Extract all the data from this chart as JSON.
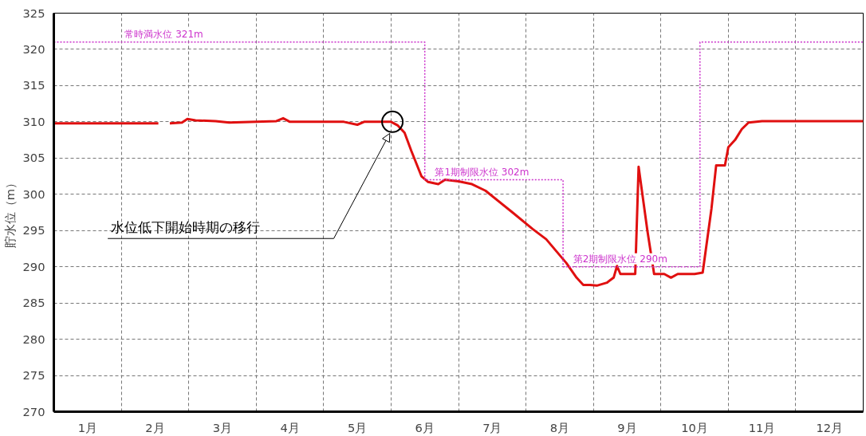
{
  "chart_data": {
    "type": "line",
    "ylabel": "貯水位（m）",
    "xlim": [
      0,
      12
    ],
    "ylim": [
      270,
      325
    ],
    "xticks": [
      {
        "value": 0,
        "label": null
      },
      {
        "value": 0.5,
        "label": "1月"
      },
      {
        "value": 1,
        "label": null
      },
      {
        "value": 1.5,
        "label": "2月"
      },
      {
        "value": 2,
        "label": null
      },
      {
        "value": 2.5,
        "label": "3月"
      },
      {
        "value": 3,
        "label": null
      },
      {
        "value": 3.5,
        "label": "4月"
      },
      {
        "value": 4,
        "label": null
      },
      {
        "value": 4.5,
        "label": "5月"
      },
      {
        "value": 5,
        "label": null
      },
      {
        "value": 5.5,
        "label": "6月"
      },
      {
        "value": 6,
        "label": null
      },
      {
        "value": 6.5,
        "label": "7月"
      },
      {
        "value": 7,
        "label": null
      },
      {
        "value": 7.5,
        "label": "8月"
      },
      {
        "value": 8,
        "label": null
      },
      {
        "value": 8.5,
        "label": "9月"
      },
      {
        "value": 9,
        "label": null
      },
      {
        "value": 9.5,
        "label": "10月"
      },
      {
        "value": 10,
        "label": null
      },
      {
        "value": 10.5,
        "label": "11月"
      },
      {
        "value": 11,
        "label": null
      },
      {
        "value": 11.5,
        "label": "12月"
      },
      {
        "value": 12,
        "label": null
      }
    ],
    "yticks": [
      270,
      275,
      280,
      285,
      290,
      295,
      300,
      305,
      310,
      315,
      320,
      325
    ],
    "grid": true,
    "series": [
      {
        "color": "#e01010",
        "line_style": "solid",
        "x": [
          0,
          0.5,
          1.0,
          1.55,
          1.6,
          1.72,
          1.9,
          1.98,
          2.1,
          2.4,
          2.6,
          3.0,
          3.3,
          3.4,
          3.5,
          4.0,
          4.3,
          4.5,
          4.6,
          5.0,
          5.1,
          5.2,
          5.3,
          5.45,
          5.55,
          5.7,
          5.8,
          6.0,
          6.2,
          6.4,
          6.8,
          7.1,
          7.3,
          7.6,
          7.75,
          7.85,
          7.95,
          8.05,
          8.2,
          8.3,
          8.35,
          8.4,
          8.62,
          8.67,
          8.8,
          8.9,
          9.05,
          9.15,
          9.25,
          9.5,
          9.62,
          9.75,
          9.82,
          9.95,
          10.0,
          10.1,
          10.2,
          10.3,
          10.5,
          11.0,
          11.5,
          12
        ],
        "values": [
          309.8,
          309.8,
          309.8,
          309.8,
          null,
          309.8,
          309.9,
          310.4,
          310.2,
          310.1,
          309.9,
          310.0,
          310.1,
          310.5,
          310.0,
          310.0,
          310.0,
          309.6,
          310.0,
          310.0,
          309.5,
          308.5,
          306,
          302.5,
          301.7,
          301.4,
          302.0,
          301.8,
          301.4,
          300.5,
          297.5,
          295.2,
          293.8,
          290.5,
          288.5,
          287.5,
          287.5,
          287.4,
          287.8,
          288.5,
          290.1,
          289.0,
          289.0,
          303.8,
          295,
          289,
          289,
          288.5,
          289.0,
          289.0,
          289.2,
          298,
          304.0,
          304.0,
          306.5,
          307.5,
          309.0,
          309.9,
          310.1,
          310.1,
          310.1,
          310.1
        ]
      },
      {
        "color": "#cc33cc",
        "line_style": "dotted",
        "x": [
          0,
          5.5,
          5.5,
          7.55,
          7.55,
          9.58,
          9.58,
          12
        ],
        "values": [
          321,
          321,
          302,
          302,
          290,
          290,
          321,
          321
        ]
      }
    ],
    "annotations": [
      {
        "text": "常時満水位  321m",
        "x": 1.05,
        "y": 321
      },
      {
        "text": "第1期制限水位  302m",
        "x": 5.65,
        "y": 302
      },
      {
        "text": "第2期制限水位  290m",
        "x": 7.7,
        "y": 290
      },
      "水位低下開始時期の移行"
    ]
  }
}
